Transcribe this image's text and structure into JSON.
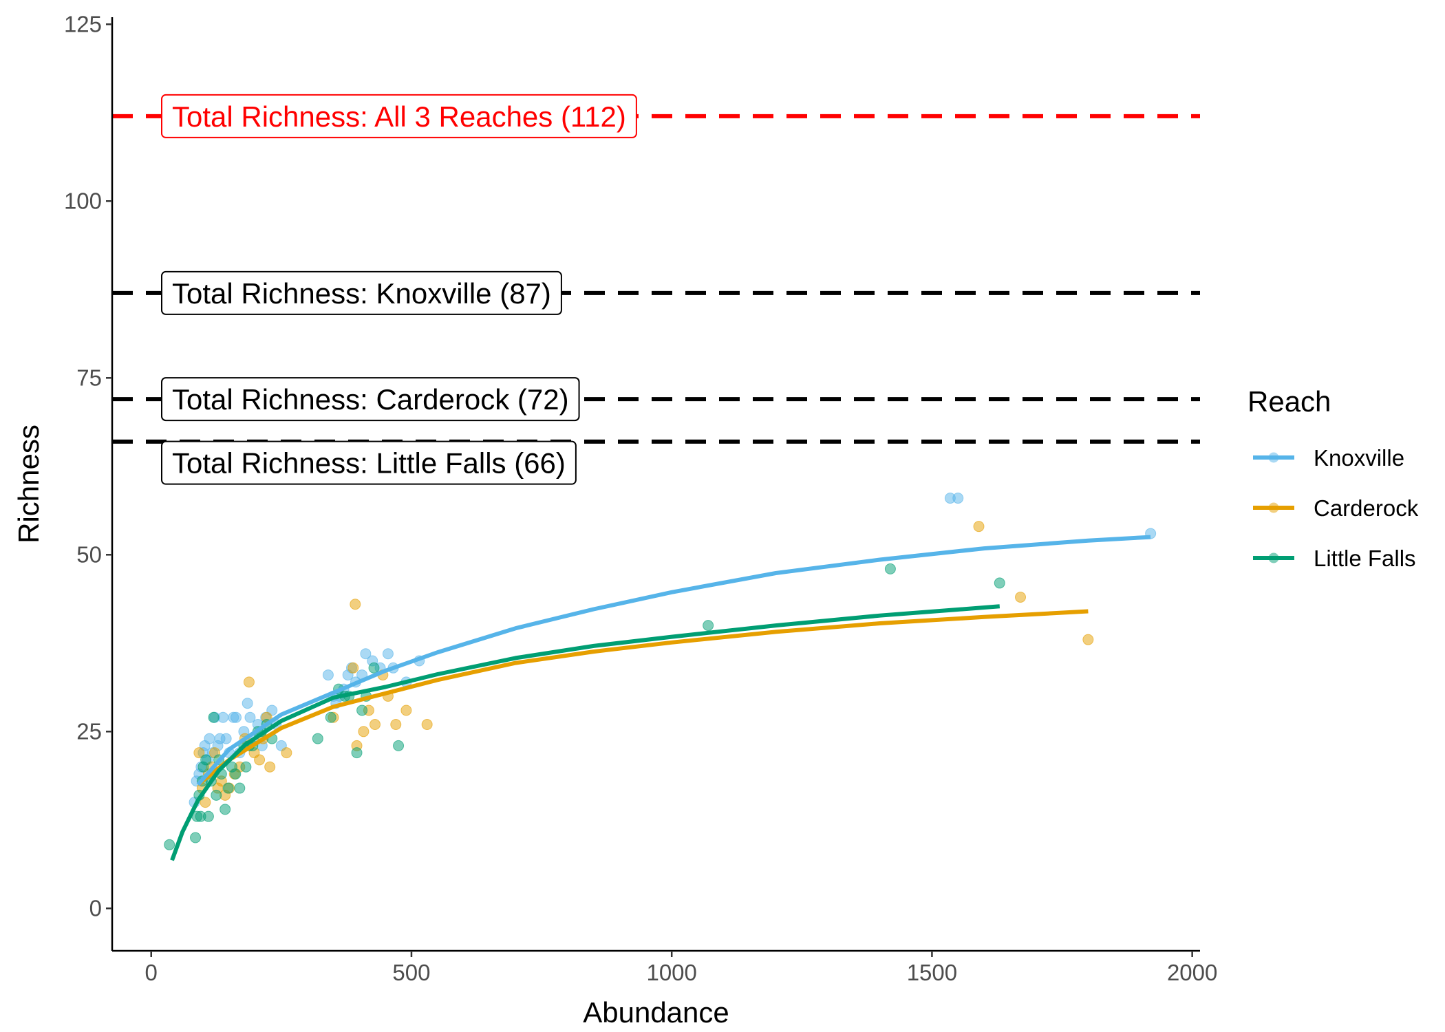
{
  "chart_data": {
    "type": "scatter",
    "xlabel": "Abundance",
    "ylabel": "Richness",
    "xlim": [
      -75,
      2015
    ],
    "ylim": [
      -6,
      126
    ],
    "x_ticks": [
      0,
      500,
      1000,
      1500,
      2000
    ],
    "y_ticks": [
      0,
      25,
      50,
      75,
      100,
      125
    ],
    "grid": false,
    "legend": {
      "title": "Reach",
      "position": "right",
      "entries": [
        "Knoxville",
        "Carderock",
        "Little Falls"
      ]
    },
    "reference_lines": [
      {
        "y": 112,
        "label": "Total Richness: All 3 Reaches (112)",
        "color": "#ff0000",
        "label_y": 112
      },
      {
        "y": 87,
        "label": "Total Richness: Knoxville (87)",
        "color": "#000000",
        "label_y": 87
      },
      {
        "y": 72,
        "label": "Total Richness: Carderock (72)",
        "color": "#000000",
        "label_y": 72
      },
      {
        "y": 66,
        "label": "Total Richness: Little Falls (66)",
        "color": "#000000",
        "label_y": 63
      }
    ],
    "series": [
      {
        "name": "Knoxville",
        "color": "#56B4E9",
        "points": [
          [
            83,
            15
          ],
          [
            87,
            18
          ],
          [
            92,
            19
          ],
          [
            96,
            20
          ],
          [
            100,
            22
          ],
          [
            103,
            23
          ],
          [
            108,
            21
          ],
          [
            112,
            24
          ],
          [
            118,
            22
          ],
          [
            122,
            27
          ],
          [
            128,
            23
          ],
          [
            132,
            24
          ],
          [
            138,
            27
          ],
          [
            144,
            24
          ],
          [
            150,
            22
          ],
          [
            158,
            27
          ],
          [
            163,
            27
          ],
          [
            170,
            22
          ],
          [
            178,
            25
          ],
          [
            185,
            29
          ],
          [
            190,
            27
          ],
          [
            197,
            24
          ],
          [
            205,
            26
          ],
          [
            213,
            23
          ],
          [
            220,
            27
          ],
          [
            232,
            28
          ],
          [
            240,
            26
          ],
          [
            250,
            23
          ],
          [
            340,
            33
          ],
          [
            350,
            30
          ],
          [
            355,
            29
          ],
          [
            362,
            30
          ],
          [
            370,
            31
          ],
          [
            378,
            33
          ],
          [
            385,
            34
          ],
          [
            393,
            32
          ],
          [
            405,
            33
          ],
          [
            412,
            36
          ],
          [
            425,
            35
          ],
          [
            440,
            34
          ],
          [
            455,
            36
          ],
          [
            465,
            34
          ],
          [
            490,
            32
          ],
          [
            515,
            35
          ],
          [
            1535,
            58
          ],
          [
            1550,
            58
          ],
          [
            1920,
            53
          ]
        ],
        "fit": [
          [
            90,
            17.5
          ],
          [
            150,
            22.5
          ],
          [
            250,
            27.4
          ],
          [
            350,
            30.5
          ],
          [
            450,
            33.6
          ],
          [
            550,
            36.2
          ],
          [
            700,
            39.6
          ],
          [
            850,
            42.3
          ],
          [
            1000,
            44.7
          ],
          [
            1200,
            47.4
          ],
          [
            1400,
            49.3
          ],
          [
            1600,
            50.9
          ],
          [
            1800,
            52.0
          ],
          [
            1920,
            52.5
          ]
        ]
      },
      {
        "name": "Carderock",
        "color": "#E69F00",
        "points": [
          [
            92,
            22
          ],
          [
            98,
            17
          ],
          [
            104,
            15
          ],
          [
            110,
            19
          ],
          [
            116,
            20
          ],
          [
            122,
            22
          ],
          [
            128,
            17
          ],
          [
            135,
            18
          ],
          [
            142,
            16
          ],
          [
            150,
            17
          ],
          [
            160,
            19
          ],
          [
            170,
            20
          ],
          [
            180,
            24
          ],
          [
            188,
            32
          ],
          [
            198,
            22
          ],
          [
            208,
            21
          ],
          [
            215,
            24
          ],
          [
            222,
            27
          ],
          [
            228,
            20
          ],
          [
            260,
            22
          ],
          [
            350,
            27
          ],
          [
            388,
            34
          ],
          [
            392,
            43
          ],
          [
            395,
            23
          ],
          [
            408,
            25
          ],
          [
            418,
            28
          ],
          [
            430,
            26
          ],
          [
            445,
            33
          ],
          [
            455,
            30
          ],
          [
            470,
            26
          ],
          [
            490,
            28
          ],
          [
            530,
            26
          ],
          [
            1590,
            54
          ],
          [
            1670,
            44
          ],
          [
            1800,
            38
          ]
        ],
        "fit": [
          [
            90,
            17.5
          ],
          [
            150,
            21.0
          ],
          [
            250,
            25.5
          ],
          [
            350,
            28.5
          ],
          [
            450,
            30.4
          ],
          [
            550,
            32.3
          ],
          [
            700,
            34.7
          ],
          [
            850,
            36.3
          ],
          [
            1000,
            37.6
          ],
          [
            1200,
            39.1
          ],
          [
            1400,
            40.3
          ],
          [
            1600,
            41.2
          ],
          [
            1800,
            42.0
          ]
        ]
      },
      {
        "name": "Little Falls",
        "color": "#009E73",
        "points": [
          [
            35,
            9
          ],
          [
            85,
            10
          ],
          [
            88,
            13
          ],
          [
            92,
            16
          ],
          [
            95,
            13
          ],
          [
            98,
            18
          ],
          [
            100,
            20
          ],
          [
            105,
            21
          ],
          [
            110,
            13
          ],
          [
            115,
            18
          ],
          [
            120,
            27
          ],
          [
            125,
            16
          ],
          [
            130,
            21
          ],
          [
            135,
            19
          ],
          [
            142,
            14
          ],
          [
            148,
            17
          ],
          [
            155,
            20
          ],
          [
            162,
            19
          ],
          [
            170,
            17
          ],
          [
            178,
            23
          ],
          [
            182,
            20
          ],
          [
            188,
            23
          ],
          [
            195,
            23
          ],
          [
            205,
            25
          ],
          [
            212,
            25
          ],
          [
            222,
            26
          ],
          [
            232,
            24
          ],
          [
            320,
            24
          ],
          [
            345,
            27
          ],
          [
            360,
            31
          ],
          [
            372,
            30
          ],
          [
            380,
            30
          ],
          [
            395,
            22
          ],
          [
            405,
            28
          ],
          [
            413,
            30
          ],
          [
            428,
            34
          ],
          [
            475,
            23
          ],
          [
            1070,
            40
          ],
          [
            1420,
            48
          ],
          [
            1630,
            46
          ]
        ],
        "fit": [
          [
            40,
            6.8
          ],
          [
            60,
            10.8
          ],
          [
            90,
            15.3
          ],
          [
            130,
            19.5
          ],
          [
            180,
            23.1
          ],
          [
            250,
            26.5
          ],
          [
            350,
            29.8
          ],
          [
            450,
            31.3
          ],
          [
            550,
            33.1
          ],
          [
            700,
            35.4
          ],
          [
            850,
            37.1
          ],
          [
            1000,
            38.4
          ],
          [
            1200,
            40.0
          ],
          [
            1400,
            41.4
          ],
          [
            1630,
            42.7
          ]
        ]
      }
    ]
  }
}
